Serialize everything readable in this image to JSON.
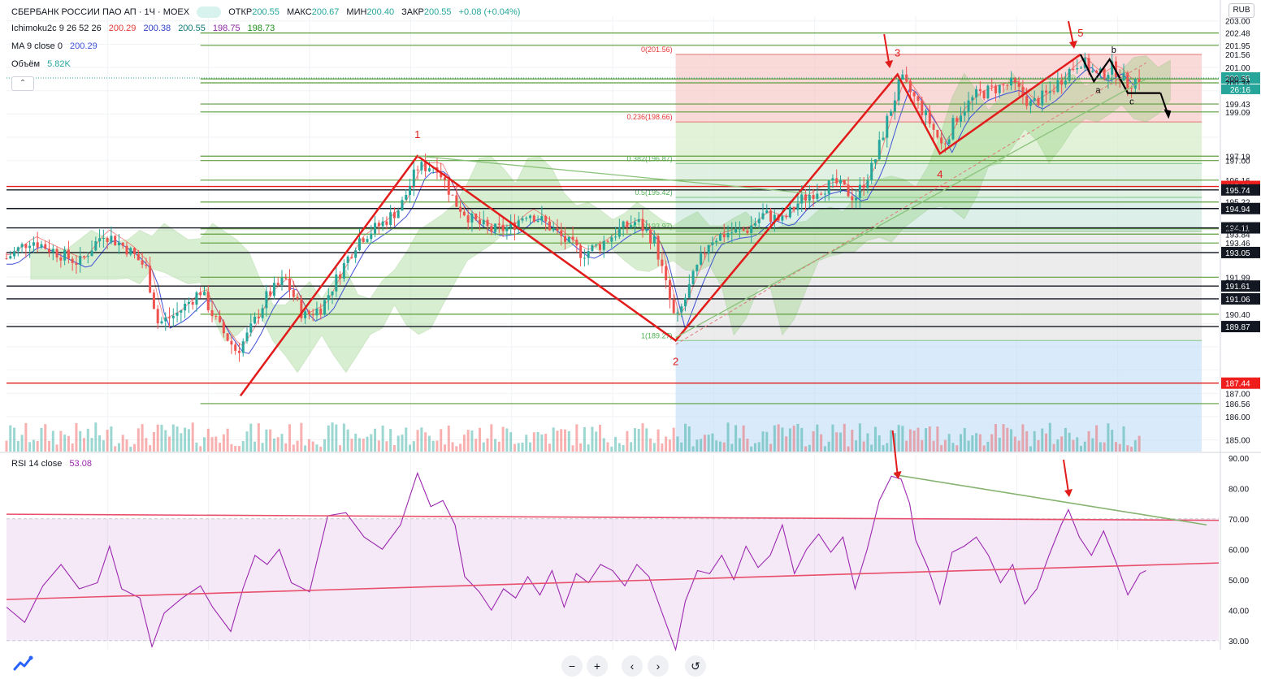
{
  "header": {
    "title": "СБЕРБАНК РОССИИ ПАО АП · 1Ч · MOEX",
    "o_label": "ОТКР",
    "o_val": "200.55",
    "h_label": "МАКС",
    "h_val": "200.67",
    "l_label": "МИН",
    "l_val": "200.40",
    "c_label": "ЗАКР",
    "c_val": "200.55",
    "change": "+0.08 (+0.04%)",
    "currency": "RUB"
  },
  "indicators": {
    "ichimoku_label": "Ichimoku2c 9 26 52 26",
    "ichimoku_values": [
      "200.29",
      "200.38",
      "200.55",
      "198.75",
      "198.73"
    ],
    "ma_label": "MA 9 close 0",
    "ma_value": "200.29",
    "volume_label": "Объём",
    "volume_value": "5.82K",
    "rsi_label": "RSI 14 close",
    "rsi_value": "53.08"
  },
  "controls": {
    "collapse": "⌃",
    "zoom_out": "−",
    "zoom_in": "+",
    "scroll_left": "‹",
    "scroll_right": "›",
    "reset": "↺"
  },
  "colors": {
    "up": "#26a69a",
    "down": "#ef5350",
    "wave": "#e21b1b",
    "green_level": "#5e9e3c",
    "black_level": "#131722",
    "ma": "#3f51d8",
    "rsi": "#9c27b0",
    "cloud": "#8fd07a"
  },
  "chart_data": {
    "type": "candlestick",
    "symbol": "СБЕРБАНК РОССИИ ПАО АП",
    "timeframe": "1Ч",
    "exchange": "MOEX",
    "price_axis_ticks": [
      203.0,
      202.48,
      201.95,
      201.56,
      201.0,
      200.55,
      200.51,
      200.34,
      199.43,
      199.09,
      197.19,
      197.0,
      196.16,
      195.89,
      195.74,
      195.22,
      194.94,
      194.11,
      194.07,
      193.84,
      193.46,
      193.05,
      191.99,
      191.61,
      191.06,
      190.4,
      189.87,
      187.44,
      187.0,
      186.56,
      186.0,
      185.0
    ],
    "price_range": [
      184.5,
      203.2
    ],
    "current_price": 200.55,
    "current_time_label": "26:16",
    "highlighted_levels": [
      {
        "value": 195.89,
        "style": "red"
      },
      {
        "value": 187.44,
        "style": "red"
      },
      {
        "value": 195.74,
        "style": "black"
      },
      {
        "value": 194.94,
        "style": "black"
      },
      {
        "value": 194.11,
        "style": "black"
      },
      {
        "value": 193.05,
        "style": "black"
      },
      {
        "value": 191.61,
        "style": "black"
      },
      {
        "value": 191.06,
        "style": "black"
      },
      {
        "value": 189.87,
        "style": "black"
      }
    ],
    "horizontal_green_levels": [
      202.48,
      201.95,
      200.51,
      200.34,
      199.43,
      199.09,
      197.19,
      197.0,
      196.16,
      195.22,
      194.07,
      193.84,
      193.46,
      191.99,
      190.4,
      186.56
    ],
    "fib_levels": [
      {
        "label": "0(201.56)",
        "value": 201.56
      },
      {
        "label": "0.236(198.66)",
        "value": 198.66
      },
      {
        "label": "0.382(196.87)",
        "value": 196.87
      },
      {
        "label": "0.5(195.42)",
        "value": 195.42
      },
      {
        "label": "0.618(193.97)",
        "value": 193.97
      },
      {
        "label": "1(189.27)",
        "value": 189.27
      }
    ],
    "wave_points": [
      {
        "label": "",
        "t": 0.193,
        "price": 186.9
      },
      {
        "label": "1",
        "t": 0.339,
        "price": 197.2
      },
      {
        "label": "2",
        "t": 0.552,
        "price": 189.27
      },
      {
        "label": "3",
        "t": 0.735,
        "price": 200.7
      },
      {
        "label": "4",
        "t": 0.77,
        "price": 197.3
      },
      {
        "label": "5",
        "t": 0.886,
        "price": 201.56
      }
    ],
    "abc_points": [
      {
        "label": "",
        "t": 0.886,
        "price": 201.56
      },
      {
        "label": "a",
        "t": 0.897,
        "price": 200.4
      },
      {
        "label": "b",
        "t": 0.91,
        "price": 201.35
      },
      {
        "label": "c",
        "t": 0.925,
        "price": 199.9
      },
      {
        "label": "",
        "t": 0.952,
        "price": 199.9
      }
    ],
    "close_path": [
      [
        0.0,
        192.8
      ],
      [
        0.02,
        193.6
      ],
      [
        0.04,
        193.1
      ],
      [
        0.06,
        192.6
      ],
      [
        0.08,
        193.9
      ],
      [
        0.1,
        193.2
      ],
      [
        0.115,
        192.4
      ],
      [
        0.125,
        190.0
      ],
      [
        0.14,
        190.4
      ],
      [
        0.16,
        191.4
      ],
      [
        0.175,
        189.9
      ],
      [
        0.19,
        188.8
      ],
      [
        0.2,
        189.6
      ],
      [
        0.215,
        191.2
      ],
      [
        0.23,
        191.9
      ],
      [
        0.245,
        190.3
      ],
      [
        0.26,
        190.7
      ],
      [
        0.275,
        192.2
      ],
      [
        0.29,
        193.6
      ],
      [
        0.31,
        194.3
      ],
      [
        0.325,
        195.0
      ],
      [
        0.339,
        196.7
      ],
      [
        0.355,
        196.8
      ],
      [
        0.37,
        195.2
      ],
      [
        0.385,
        194.4
      ],
      [
        0.4,
        194.0
      ],
      [
        0.415,
        194.1
      ],
      [
        0.43,
        194.8
      ],
      [
        0.445,
        194.3
      ],
      [
        0.46,
        193.6
      ],
      [
        0.475,
        193.0
      ],
      [
        0.49,
        193.4
      ],
      [
        0.505,
        194.0
      ],
      [
        0.52,
        194.4
      ],
      [
        0.535,
        193.5
      ],
      [
        0.552,
        190.0
      ],
      [
        0.565,
        191.8
      ],
      [
        0.58,
        193.6
      ],
      [
        0.595,
        193.9
      ],
      [
        0.61,
        194.0
      ],
      [
        0.625,
        194.7
      ],
      [
        0.64,
        194.4
      ],
      [
        0.655,
        195.3
      ],
      [
        0.67,
        195.8
      ],
      [
        0.685,
        196.0
      ],
      [
        0.7,
        195.4
      ],
      [
        0.715,
        196.8
      ],
      [
        0.728,
        199.0
      ],
      [
        0.738,
        200.5
      ],
      [
        0.75,
        199.6
      ],
      [
        0.762,
        198.6
      ],
      [
        0.772,
        197.6
      ],
      [
        0.785,
        199.0
      ],
      [
        0.8,
        199.8
      ],
      [
        0.815,
        200.1
      ],
      [
        0.83,
        200.3
      ],
      [
        0.845,
        199.4
      ],
      [
        0.86,
        199.9
      ],
      [
        0.875,
        200.8
      ],
      [
        0.886,
        201.3
      ],
      [
        0.9,
        200.6
      ],
      [
        0.913,
        201.0
      ],
      [
        0.925,
        200.3
      ],
      [
        0.935,
        200.55
      ]
    ],
    "rsi": {
      "axis_ticks": [
        90,
        80,
        70,
        60,
        50,
        40,
        30
      ],
      "range": [
        27,
        91
      ],
      "overbought": 70,
      "oversold": 30,
      "current": 53.08,
      "points": [
        [
          0.0,
          41
        ],
        [
          0.015,
          36
        ],
        [
          0.03,
          48
        ],
        [
          0.045,
          55
        ],
        [
          0.06,
          47
        ],
        [
          0.075,
          49
        ],
        [
          0.085,
          61
        ],
        [
          0.095,
          47
        ],
        [
          0.11,
          44
        ],
        [
          0.12,
          28
        ],
        [
          0.13,
          39
        ],
        [
          0.145,
          44
        ],
        [
          0.16,
          48
        ],
        [
          0.17,
          41
        ],
        [
          0.185,
          33
        ],
        [
          0.195,
          47
        ],
        [
          0.205,
          58
        ],
        [
          0.215,
          55
        ],
        [
          0.225,
          60
        ],
        [
          0.235,
          49
        ],
        [
          0.25,
          46
        ],
        [
          0.265,
          71
        ],
        [
          0.28,
          72
        ],
        [
          0.295,
          64
        ],
        [
          0.31,
          60
        ],
        [
          0.325,
          68
        ],
        [
          0.339,
          85
        ],
        [
          0.35,
          74
        ],
        [
          0.36,
          76
        ],
        [
          0.37,
          68
        ],
        [
          0.378,
          51
        ],
        [
          0.39,
          46
        ],
        [
          0.4,
          40
        ],
        [
          0.41,
          47
        ],
        [
          0.42,
          44
        ],
        [
          0.43,
          51
        ],
        [
          0.44,
          45
        ],
        [
          0.45,
          53
        ],
        [
          0.46,
          41
        ],
        [
          0.47,
          52
        ],
        [
          0.48,
          49
        ],
        [
          0.49,
          55
        ],
        [
          0.5,
          53
        ],
        [
          0.51,
          48
        ],
        [
          0.52,
          55
        ],
        [
          0.53,
          51
        ],
        [
          0.54,
          40
        ],
        [
          0.552,
          27
        ],
        [
          0.56,
          43
        ],
        [
          0.57,
          53
        ],
        [
          0.58,
          52
        ],
        [
          0.59,
          58
        ],
        [
          0.6,
          50
        ],
        [
          0.61,
          61
        ],
        [
          0.62,
          54
        ],
        [
          0.63,
          58
        ],
        [
          0.64,
          68
        ],
        [
          0.65,
          52
        ],
        [
          0.66,
          60
        ],
        [
          0.67,
          65
        ],
        [
          0.68,
          59
        ],
        [
          0.69,
          64
        ],
        [
          0.7,
          47
        ],
        [
          0.71,
          60
        ],
        [
          0.72,
          76
        ],
        [
          0.73,
          84
        ],
        [
          0.738,
          83
        ],
        [
          0.745,
          75
        ],
        [
          0.75,
          63
        ],
        [
          0.76,
          54
        ],
        [
          0.77,
          42
        ],
        [
          0.78,
          59
        ],
        [
          0.79,
          61
        ],
        [
          0.8,
          64
        ],
        [
          0.81,
          58
        ],
        [
          0.82,
          49
        ],
        [
          0.83,
          55
        ],
        [
          0.84,
          42
        ],
        [
          0.85,
          47
        ],
        [
          0.86,
          58
        ],
        [
          0.87,
          68
        ],
        [
          0.876,
          73
        ],
        [
          0.885,
          64
        ],
        [
          0.895,
          58
        ],
        [
          0.905,
          66
        ],
        [
          0.915,
          56
        ],
        [
          0.925,
          45
        ],
        [
          0.935,
          52
        ],
        [
          0.94,
          53
        ]
      ],
      "trend_lines": [
        {
          "from": [
            0.0,
            71.5
          ],
          "to": [
            1.0,
            69.5
          ],
          "color": "red"
        },
        {
          "from": [
            0.0,
            43.5
          ],
          "to": [
            1.0,
            55.5
          ],
          "color": "red"
        },
        {
          "from": [
            0.732,
            84.5
          ],
          "to": [
            0.99,
            68
          ],
          "color": "green"
        }
      ]
    }
  }
}
